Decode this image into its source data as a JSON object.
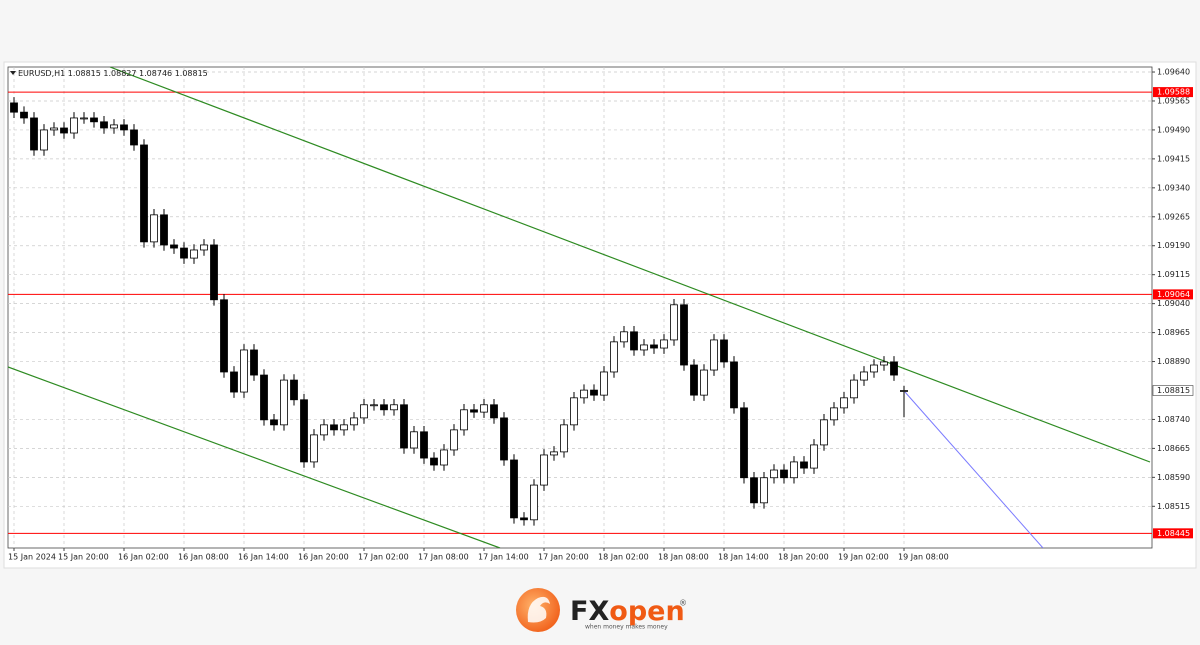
{
  "chart_data": {
    "type": "candlestick",
    "symbol": "EURUSD,H1",
    "categories": [
      "15 Jan 2024",
      null,
      null,
      null,
      null,
      "15 Jan 20:00",
      null,
      null,
      null,
      null,
      null,
      "16 Jan 02:00",
      null,
      null,
      null,
      null,
      null,
      "16 Jan 08:00",
      null,
      null,
      null,
      null,
      null,
      "16 Jan 14:00",
      null,
      null,
      null,
      null,
      null,
      "16 Jan 20:00",
      null,
      null,
      null,
      null,
      null,
      "17 Jan 02:00",
      null,
      null,
      null,
      null,
      null,
      "17 Jan 08:00",
      null,
      null,
      null,
      null,
      null,
      "17 Jan 14:00",
      null,
      null,
      null,
      null,
      null,
      "17 Jan 20:00",
      null,
      null,
      null,
      null,
      null,
      "18 Jan 02:00",
      null,
      null,
      null,
      null,
      null,
      "18 Jan 08:00",
      null,
      null,
      null,
      null,
      null,
      "18 Jan 14:00",
      null,
      null,
      null,
      null,
      null,
      "18 Jan 20:00",
      null,
      null,
      null,
      null,
      null,
      "19 Jan 02:00",
      null,
      null,
      null,
      null,
      null,
      "19 Jan 08:00"
    ],
    "open": [
      1.0956,
      1.09536,
      1.09521,
      1.09438,
      1.0949,
      1.09495,
      1.09482,
      1.09521,
      1.09521,
      1.09511,
      1.09495,
      1.09503,
      1.0949,
      1.09451,
      1.092,
      1.0927,
      1.09192,
      1.09184,
      1.09158,
      1.09179,
      1.09192,
      1.0905,
      1.08863,
      1.08811,
      1.0892,
      1.08855,
      1.08739,
      1.08726,
      1.08842,
      1.08791,
      1.0863,
      1.087,
      1.08726,
      1.08713,
      1.08726,
      1.08744,
      1.08778,
      1.08778,
      1.08765,
      1.08778,
      1.08666,
      1.08708,
      1.0864,
      1.08622,
      1.08661,
      1.08713,
      1.08765,
      1.08759,
      1.08778,
      1.08744,
      1.08635,
      1.08485,
      1.0848,
      1.0857,
      1.08648,
      1.08656,
      1.08726,
      1.08796,
      1.08816,
      1.08803,
      1.08863,
      1.08941,
      1.08967,
      1.0892,
      1.08933,
      1.08925,
      1.08946,
      1.09037,
      1.08881,
      1.08803,
      1.08868,
      1.08946,
      1.08889,
      1.0877,
      1.08589,
      1.08524,
      1.08589,
      1.08609,
      1.08589,
      1.0863,
      1.08614,
      1.08674,
      1.08739,
      1.0877,
      1.08796,
      1.08842,
      1.08863,
      1.08881,
      1.08889,
      1.08815
    ],
    "high": [
      1.09575,
      1.09551,
      1.09536,
      1.09505,
      1.0951,
      1.0951,
      1.09536,
      1.09536,
      1.09536,
      1.09526,
      1.09518,
      1.09518,
      1.09505,
      1.09466,
      1.09285,
      1.09285,
      1.09207,
      1.09199,
      1.09194,
      1.09207,
      1.09207,
      1.09065,
      1.08878,
      1.08935,
      1.08935,
      1.0887,
      1.08754,
      1.08857,
      1.08857,
      1.08806,
      1.08715,
      1.08741,
      1.08741,
      1.08741,
      1.08759,
      1.08793,
      1.08793,
      1.08793,
      1.08793,
      1.08793,
      1.08723,
      1.08723,
      1.08655,
      1.08676,
      1.08728,
      1.0878,
      1.0878,
      1.08793,
      1.08793,
      1.08759,
      1.0865,
      1.085,
      1.08585,
      1.08663,
      1.08671,
      1.08741,
      1.08811,
      1.08831,
      1.08831,
      1.08878,
      1.08956,
      1.08982,
      1.08982,
      1.08948,
      1.08948,
      1.08961,
      1.09052,
      1.09052,
      1.08896,
      1.08883,
      1.08961,
      1.08961,
      1.08904,
      1.08785,
      1.08604,
      1.08604,
      1.08624,
      1.08624,
      1.08645,
      1.08645,
      1.08689,
      1.08754,
      1.08785,
      1.08811,
      1.08857,
      1.08878,
      1.08896,
      1.08904,
      1.08904,
      1.08827
    ],
    "low": [
      1.09521,
      1.09506,
      1.09423,
      1.09423,
      1.09475,
      1.09467,
      1.09467,
      1.09506,
      1.09496,
      1.0948,
      1.0948,
      1.09475,
      1.09436,
      1.09185,
      1.09185,
      1.09177,
      1.09169,
      1.09143,
      1.09143,
      1.09164,
      1.09035,
      1.08848,
      1.08796,
      1.08796,
      1.0884,
      1.08724,
      1.08711,
      1.08711,
      1.08776,
      1.08615,
      1.08615,
      1.08685,
      1.08698,
      1.08698,
      1.08711,
      1.08729,
      1.08763,
      1.0875,
      1.0875,
      1.08651,
      1.08651,
      1.08625,
      1.08607,
      1.08607,
      1.08646,
      1.08698,
      1.08744,
      1.08744,
      1.08729,
      1.0862,
      1.0847,
      1.08465,
      1.08465,
      1.08555,
      1.08633,
      1.08641,
      1.08711,
      1.08781,
      1.08788,
      1.08788,
      1.08848,
      1.08926,
      1.08905,
      1.08905,
      1.0891,
      1.0891,
      1.08931,
      1.08866,
      1.08788,
      1.08788,
      1.08853,
      1.08874,
      1.08755,
      1.08574,
      1.08509,
      1.08509,
      1.08574,
      1.08574,
      1.08574,
      1.08599,
      1.08599,
      1.08659,
      1.08724,
      1.08755,
      1.08781,
      1.08827,
      1.08848,
      1.08866,
      1.0884,
      1.08746
    ],
    "close": [
      1.09536,
      1.09521,
      1.09438,
      1.0949,
      1.09495,
      1.09482,
      1.09521,
      1.09521,
      1.09511,
      1.09495,
      1.09503,
      1.0949,
      1.09451,
      1.092,
      1.0927,
      1.09192,
      1.09184,
      1.09158,
      1.09179,
      1.09192,
      1.0905,
      1.08863,
      1.08811,
      1.0892,
      1.08855,
      1.08739,
      1.08726,
      1.08842,
      1.08791,
      1.0863,
      1.087,
      1.08726,
      1.08713,
      1.08726,
      1.08744,
      1.08778,
      1.08778,
      1.08765,
      1.08778,
      1.08666,
      1.08708,
      1.0864,
      1.08622,
      1.08661,
      1.08713,
      1.08765,
      1.08759,
      1.08778,
      1.08744,
      1.08635,
      1.08485,
      1.0848,
      1.0857,
      1.08648,
      1.08656,
      1.08726,
      1.08796,
      1.08816,
      1.08803,
      1.08863,
      1.08941,
      1.08967,
      1.0892,
      1.08933,
      1.08925,
      1.08946,
      1.09037,
      1.08881,
      1.08803,
      1.08868,
      1.08946,
      1.08889,
      1.0877,
      1.08589,
      1.08524,
      1.08589,
      1.08609,
      1.08589,
      1.0863,
      1.08614,
      1.08674,
      1.08739,
      1.0877,
      1.08796,
      1.08842,
      1.08863,
      1.08881,
      1.08889,
      1.08855,
      1.08815
    ],
    "up_color": "#ffffff",
    "down_color": "#000000",
    "level_color": "#ff0000",
    "levels": [
      1.09588,
      1.09064,
      1.08445
    ],
    "ylim": [
      1.08407,
      1.09653
    ],
    "yticks": [
      {
        "value": 1.0964,
        "label": "1.09640"
      },
      1.09565,
      {
        "value": 1.0949,
        "label": "1.09490"
      },
      1.09415,
      {
        "value": 1.0934,
        "label": "1.09340"
      },
      1.09265,
      {
        "value": 1.0919,
        "label": "1.09190"
      },
      1.09115,
      {
        "value": 1.0904,
        "label": "1.09040"
      },
      1.08965,
      {
        "value": 1.0889,
        "label": "1.08890"
      },
      {
        "value": 1.0874,
        "label": "1.08740"
      },
      1.08665,
      {
        "value": 1.0859,
        "label": "1.08590"
      },
      1.08515
    ],
    "grid": true
  },
  "footer": {
    "brand_fx": "FX",
    "brand_open": "open",
    "registered": "®",
    "tagline": "when money makes money"
  }
}
